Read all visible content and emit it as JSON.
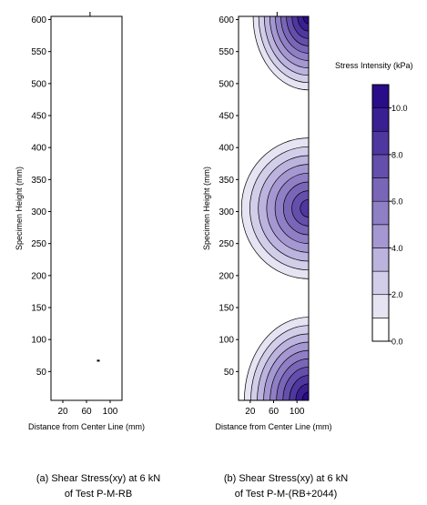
{
  "colors": {
    "scale": [
      "#ffffff",
      "#e6e3f2",
      "#d2cde9",
      "#bcb3de",
      "#a598d2",
      "#8f7fc5",
      "#7966b8",
      "#644fac",
      "#4f37a0",
      "#3a1f93",
      "#280c88"
    ],
    "frame": "#000000"
  },
  "chart_data": [
    {
      "type": "contour",
      "caption": [
        "(a) Shear Stress(xy) at 6 kN",
        "of Test P-M-RB"
      ],
      "xlabel": "Distance from Center Line (mm)",
      "ylabel": "Specimen Height (mm)",
      "xlim": [
        0,
        120
      ],
      "ylim": [
        5,
        605
      ],
      "xticks": [
        20,
        60,
        100
      ],
      "yticks": [
        50,
        100,
        150,
        200,
        250,
        300,
        350,
        400,
        450,
        500,
        550,
        600
      ],
      "xtick_labels": [
        "20",
        "60",
        "100"
      ],
      "ytick_labels": [
        "50",
        "100",
        "150",
        "200",
        "250",
        "300",
        "350",
        "400",
        "450",
        "500",
        "550",
        "600"
      ],
      "hotspots": [],
      "marks": [
        {
          "x": 80,
          "y": 67
        }
      ]
    },
    {
      "type": "contour",
      "caption": [
        "(b) Shear Stress(xy) at 6 kN",
        "of Test P-M-(RB+2044)"
      ],
      "xlabel": "Distance from Center Line (mm)",
      "ylabel": "Specimen Height (mm)",
      "xlim": [
        0,
        120
      ],
      "ylim": [
        5,
        605
      ],
      "xticks": [
        20,
        60,
        100
      ],
      "yticks": [
        50,
        100,
        150,
        200,
        250,
        300,
        350,
        400,
        450,
        500,
        550,
        600
      ],
      "xtick_labels": [
        "20",
        "60",
        "100"
      ],
      "ytick_labels": [
        "50",
        "100",
        "150",
        "200",
        "250",
        "300",
        "350",
        "400",
        "450",
        "500",
        "550",
        "600"
      ],
      "hotspots": [
        {
          "x": 120,
          "y": 605,
          "peak": 10.5,
          "rx": 95,
          "ry": 115,
          "levels": 10
        },
        {
          "x": 120,
          "y": 305,
          "peak": 8.5,
          "rx": 115,
          "ry": 110,
          "levels": 8
        },
        {
          "x": 120,
          "y": 5,
          "peak": 10.5,
          "rx": 110,
          "ry": 130,
          "levels": 10
        }
      ],
      "marks": []
    }
  ],
  "legend": {
    "title": "Stress Intensity (kPa)",
    "min": 0,
    "max": 11,
    "levels": [
      0,
      1,
      2,
      3,
      4,
      5,
      6,
      7,
      8,
      9,
      10,
      11
    ],
    "tick_values": [
      0,
      2,
      4,
      6,
      8,
      10
    ],
    "tick_labels": [
      "0.0",
      "2.0",
      "4.0",
      "6.0",
      "8.0",
      "10.0"
    ]
  }
}
